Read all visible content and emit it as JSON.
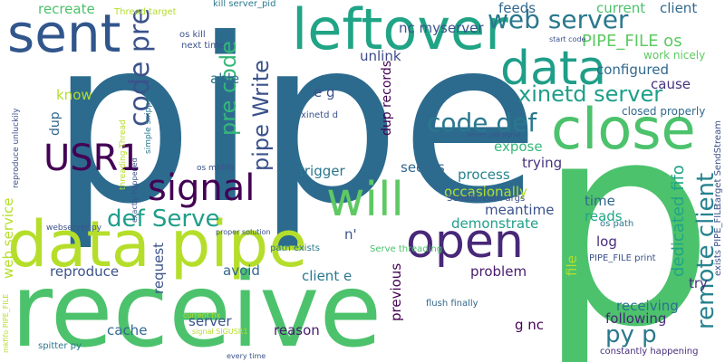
{
  "words": [
    {
      "text": "pipe",
      "color": "#2c6b8e"
    },
    {
      "text": "p",
      "color": "#4cc26c"
    },
    {
      "text": "receive",
      "color": "#4cc26c"
    },
    {
      "text": "data pipe",
      "color": "#b5de2b"
    },
    {
      "text": "leftover",
      "color": "#20a486"
    },
    {
      "text": "sent",
      "color": "#31568c"
    },
    {
      "text": "close",
      "color": "#4cc26c"
    },
    {
      "text": "data",
      "color": "#1f9e89"
    },
    {
      "text": "open",
      "color": "#482878"
    },
    {
      "text": "will",
      "color": "#5ec962"
    },
    {
      "text": "signal",
      "color": "#440154"
    },
    {
      "text": "USR1",
      "color": "#440154"
    },
    {
      "text": "def Serve",
      "color": "#1f9e89"
    },
    {
      "text": "web server",
      "color": "#2a788e"
    },
    {
      "text": "xinetd server",
      "color": "#1f9e89"
    },
    {
      "text": "PIPE_FILE os",
      "color": "#5ec962"
    },
    {
      "text": "code def",
      "color": "#2a788e"
    },
    {
      "text": "pipe Write",
      "color": "#3b528b"
    },
    {
      "text": "code pre",
      "color": "#3b528b"
    },
    {
      "text": "pre code",
      "color": "#35b779"
    },
    {
      "text": "remote client",
      "color": "#26828e"
    },
    {
      "text": "py p",
      "color": "#2a788e"
    },
    {
      "text": "dedicated fifo",
      "color": "#20a486"
    },
    {
      "text": "recreate",
      "color": "#4cc26c"
    },
    {
      "text": "web service",
      "color": "#b5de2b"
    },
    {
      "text": "nc myserver",
      "color": "#3b528b"
    },
    {
      "text": "feeds",
      "color": "#31688e"
    },
    {
      "text": "current",
      "color": "#4cc26c"
    },
    {
      "text": "client",
      "color": "#31688e"
    },
    {
      "text": "configured",
      "color": "#31688e"
    },
    {
      "text": "work nicely",
      "color": "#5ec962"
    },
    {
      "text": "cause",
      "color": "#46327e"
    },
    {
      "text": "closed properly",
      "color": "#31688e"
    },
    {
      "text": "unlink",
      "color": "#3e4989"
    },
    {
      "text": "able",
      "color": "#2c728e"
    },
    {
      "text": "know",
      "color": "#b5de2b"
    },
    {
      "text": "e g",
      "color": "#3b528b"
    },
    {
      "text": "dup",
      "color": "#31688e"
    },
    {
      "text": "dup records",
      "color": "#440154"
    },
    {
      "text": "xinetd d",
      "color": "#3b528b"
    },
    {
      "text": "expose",
      "color": "#35b779"
    },
    {
      "text": "trying",
      "color": "#46327e"
    },
    {
      "text": "seems",
      "color": "#31688e"
    },
    {
      "text": "trigger",
      "color": "#2a788e"
    },
    {
      "text": "process",
      "color": "#26828e"
    },
    {
      "text": "occasionally",
      "color": "#b5de2b"
    },
    {
      "text": "meantime",
      "color": "#3b528b"
    },
    {
      "text": "demonstrate",
      "color": "#1f9e89"
    },
    {
      "text": "time",
      "color": "#31688e"
    },
    {
      "text": "reads",
      "color": "#20a486"
    },
    {
      "text": "log",
      "color": "#472d7b"
    },
    {
      "text": "receiving",
      "color": "#2c728e"
    },
    {
      "text": "following",
      "color": "#482878"
    },
    {
      "text": "try",
      "color": "#46327e"
    },
    {
      "text": "file",
      "color": "#b5de2b"
    },
    {
      "text": "problem",
      "color": "#481b6d"
    },
    {
      "text": "previous",
      "color": "#440154"
    },
    {
      "text": "client e",
      "color": "#2a788e"
    },
    {
      "text": "request",
      "color": "#3b528b"
    },
    {
      "text": "reproduce",
      "color": "#3b528b"
    },
    {
      "text": "avoid",
      "color": "#31688e"
    },
    {
      "text": "server",
      "color": "#3b528b"
    },
    {
      "text": "cache",
      "color": "#31688e"
    },
    {
      "text": "reason",
      "color": "#481b6d"
    },
    {
      "text": "g nc",
      "color": "#440154"
    },
    {
      "text": "n'",
      "color": "#3b528b"
    },
    {
      "text": "constantly happening",
      "color": "#472d7b"
    },
    {
      "text": "flush finally",
      "color": "#31688e"
    },
    {
      "text": "path exists",
      "color": "#2a788e"
    },
    {
      "text": "Serve threading",
      "color": "#4cc26c"
    },
    {
      "text": "SendStream args",
      "color": "#3b528b"
    },
    {
      "text": "PIPE_FILE print",
      "color": "#3b528b"
    },
    {
      "text": "os path",
      "color": "#2a788e"
    },
    {
      "text": "exists PIPE_FILE",
      "color": "#3b528b"
    },
    {
      "text": "target SendStream",
      "color": "#3b528b"
    },
    {
      "text": "kill server_pid",
      "color": "#2a788e"
    },
    {
      "text": "Thread target",
      "color": "#b5de2b"
    },
    {
      "text": "os kill",
      "color": "#3b528b"
    },
    {
      "text": "next time",
      "color": "#3b528b"
    },
    {
      "text": "start code",
      "color": "#3b528b"
    },
    {
      "text": "reproduce unluckily",
      "color": "#3b528b"
    },
    {
      "text": "simple snippets",
      "color": "#2a788e"
    },
    {
      "text": "threading Thread",
      "color": "#b5de2b"
    },
    {
      "text": "exactly happened",
      "color": "#3b528b"
    },
    {
      "text": "os mkfifo",
      "color": "#3b528b"
    },
    {
      "text": "webserver py",
      "color": "#3b528b"
    },
    {
      "text": "proper solution",
      "color": "#3b528b"
    },
    {
      "text": "server_pid signal",
      "color": "#3b528b"
    },
    {
      "text": "current fix",
      "color": "#b5de2b"
    },
    {
      "text": "signal SIGUSR1",
      "color": "#b5de2b"
    },
    {
      "text": "mkfifo PIPE_FILE",
      "color": "#b5de2b"
    },
    {
      "text": "spitter py",
      "color": "#2a788e"
    },
    {
      "text": "every time",
      "color": "#3b528b"
    }
  ]
}
